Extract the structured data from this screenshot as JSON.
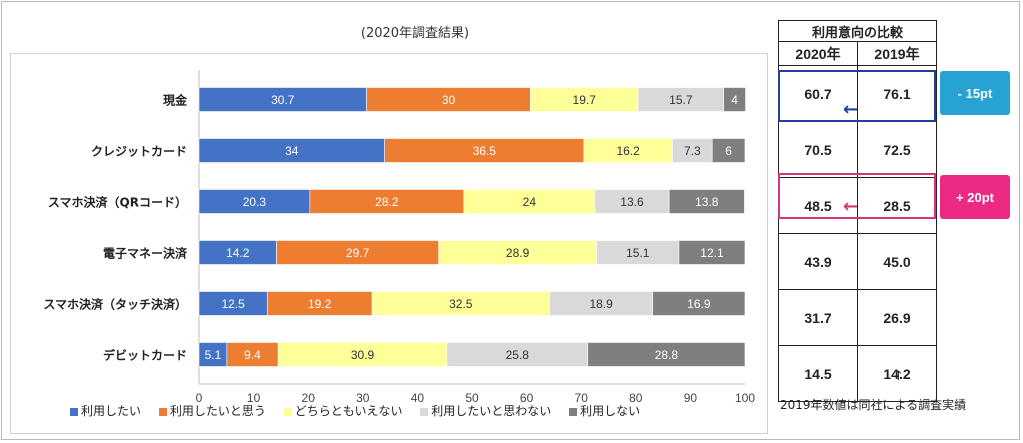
{
  "subtitle": "(2020年調査結果)",
  "chart_data": {
    "type": "bar",
    "orientation": "horizontal",
    "stacked": true,
    "categories": [
      "現金",
      "クレジットカード",
      "スマホ決済（QRコード）",
      "電子マネー決済",
      "スマホ決済（タッチ決済）",
      "デビットカード"
    ],
    "series": [
      {
        "name": "利用したい",
        "color": "#4472c4",
        "values": [
          30.7,
          34,
          20.3,
          14.2,
          12.5,
          5.1
        ]
      },
      {
        "name": "利用したいと思う",
        "color": "#ed7d31",
        "values": [
          30,
          36.5,
          28.2,
          29.7,
          19.2,
          9.4
        ]
      },
      {
        "name": "どちらともいえない",
        "color": "#ffff99",
        "values": [
          19.7,
          16.2,
          24,
          28.9,
          32.5,
          30.9
        ]
      },
      {
        "name": "利用したいと思わない",
        "color": "#d9d9d9",
        "values": [
          15.7,
          7.3,
          13.6,
          15.1,
          18.9,
          25.8
        ]
      },
      {
        "name": "利用しない",
        "color": "#7f7f7f",
        "values": [
          4,
          6,
          13.8,
          12.1,
          16.9,
          28.8
        ]
      }
    ],
    "xlim": [
      0,
      100
    ],
    "xticks": [
      "0",
      "10",
      "20",
      "30",
      "40",
      "50",
      "60",
      "70",
      "80",
      "90",
      "100"
    ],
    "grid": false,
    "legend_position": "bottom"
  },
  "comparison_table": {
    "title": "利用意向の比較",
    "col_2020": "2020年",
    "col_2019": "2019年",
    "rows": [
      {
        "v2020": "60.7",
        "v2019": "76.1"
      },
      {
        "v2020": "70.5",
        "v2019": "72.5"
      },
      {
        "v2020": "48.5",
        "v2019": "28.5"
      },
      {
        "v2020": "43.9",
        "v2019": "45.0"
      },
      {
        "v2020": "31.7",
        "v2019": "26.9"
      },
      {
        "v2020": "14.5",
        "v2019": "14.2"
      }
    ]
  },
  "callouts": {
    "cash_diff": "- 15pt",
    "cash_color": "#26a2d3",
    "cash_border_color": "#1f3f9c",
    "qr_diff": "+ 20pt",
    "qr_color": "#ec2a83",
    "qr_border_color": "#d6357d",
    "arrow_symbol": "←",
    "up_arrow": "↑"
  },
  "note": "2019年数値は同社による調査実績"
}
